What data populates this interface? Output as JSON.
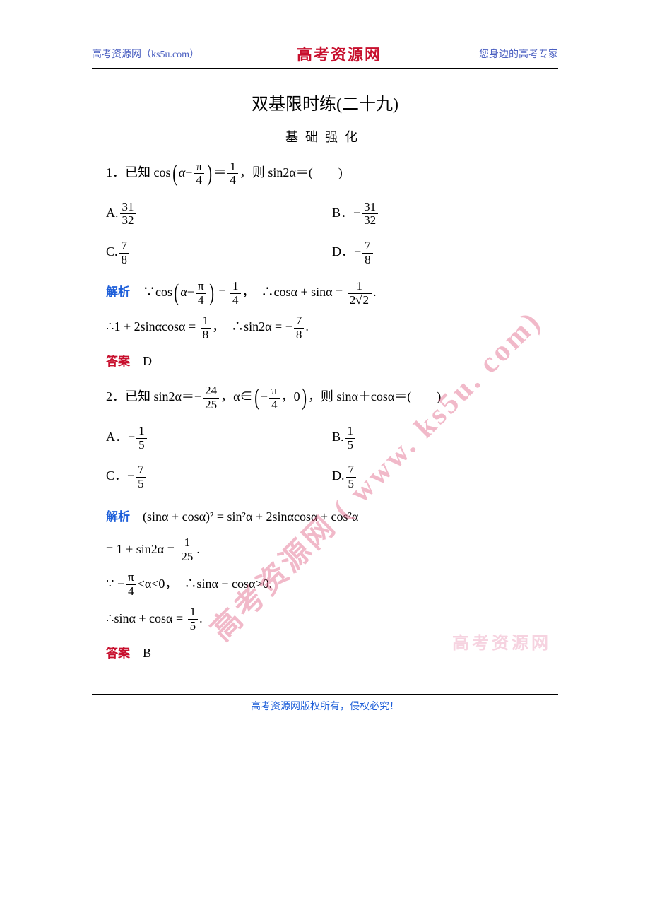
{
  "header": {
    "left": "高考资源网（ks5u.com）",
    "center": "高考资源网",
    "right": "您身边的高考专家"
  },
  "title": "双基限时练(二十九)",
  "subtitle": "基础强化",
  "watermark_diag": "高考资源网 ( www. ks5u. com)",
  "watermark_flat": "高考资源网",
  "q1": {
    "stem_prefix": "1．已知 cos",
    "stem_inner_var": "α",
    "stem_inner_minus": "−",
    "stem_frac_num": "π",
    "stem_frac_den": "4",
    "stem_eq": "＝",
    "stem_rhs_num": "1",
    "stem_rhs_den": "4",
    "stem_suffix": "，则 sin2α＝(　　)",
    "optA_label": "A.",
    "optA_num": "31",
    "optA_den": "32",
    "optB_label": "B．−",
    "optB_num": "31",
    "optB_den": "32",
    "optC_label": "C.",
    "optC_num": "7",
    "optC_den": "8",
    "optD_label": "D．−",
    "optD_num": "7",
    "optD_den": "8",
    "analysis_label": "解析",
    "a1_p1": "∵cos",
    "a1_var": "α",
    "a1_minus": "−",
    "a1_pnum": "π",
    "a1_pden": "4",
    "a1_eq1": " = ",
    "a1_r1num": "1",
    "a1_r1den": "4",
    "a1_comma": "，",
    "a1_p2": "∴cosα + sinα = ",
    "a1_r2num": "1",
    "a1_r2den_pre": "2",
    "a1_r2den_sqrt": "2",
    "a1_period": ".",
    "a2_p1": "∴1 + 2sinαcosα = ",
    "a2_r1num": "1",
    "a2_r1den": "8",
    "a2_comma": "，",
    "a2_p2": "∴sin2α = −",
    "a2_r2num": "7",
    "a2_r2den": "8",
    "a2_period": ".",
    "answer_label": "答案",
    "answer": "D"
  },
  "q2": {
    "stem_prefix": "2．已知 sin2α＝−",
    "stem_f1num": "24",
    "stem_f1den": "25",
    "stem_mid1": "，α∈",
    "stem_inner_neg": "−",
    "stem_f2num": "π",
    "stem_f2den": "4",
    "stem_inner_comma": "，",
    "stem_inner_zero": "0",
    "stem_suffix": "，则 sinα＋cosα＝(　　)",
    "optA_label": "A．−",
    "optA_num": "1",
    "optA_den": "5",
    "optB_label": "B.",
    "optB_num": "1",
    "optB_den": "5",
    "optC_label": "C．−",
    "optC_num": "7",
    "optC_den": "5",
    "optD_label": "D.",
    "optD_num": "7",
    "optD_den": "5",
    "analysis_label": "解析",
    "a1": "(sinα + cosα)² = sin²α + 2sinαcosα + cos²α",
    "a2_p1": "= 1 + sin2α = ",
    "a2_num": "1",
    "a2_den": "25",
    "a2_period": ".",
    "a3_p1": "∵ −",
    "a3_num": "π",
    "a3_den": "4",
    "a3_p2": "<α<0，",
    "a3_p3": "∴sinα + cosα>0.",
    "a4_p1": "∴sinα + cosα = ",
    "a4_num": "1",
    "a4_den": "5",
    "a4_period": ".",
    "answer_label": "答案",
    "answer": "B"
  },
  "footer": "高考资源网版权所有，侵权必究！"
}
